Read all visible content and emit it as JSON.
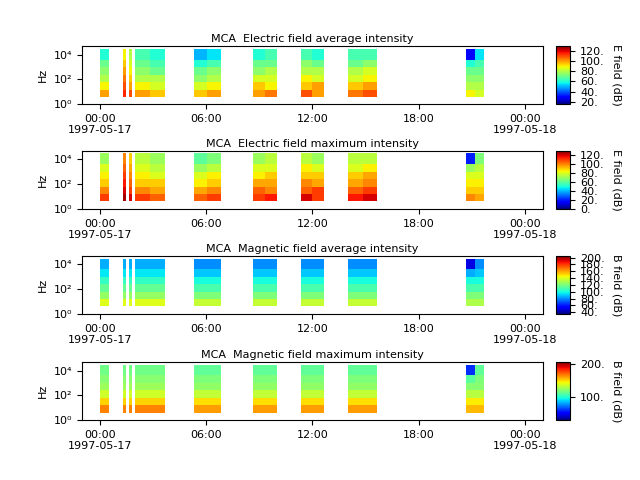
{
  "chart_data": [
    {
      "type": "heatmap",
      "title": "MCA  Electric field average intensity",
      "y_label": "Hz",
      "log": "y",
      "xlim": [
        "1997-05-16 23:00",
        "1997-05-18 01:00"
      ],
      "xticks": [
        {
          "value": "1997-05-17 00:00",
          "label": "00:00\n1997-05-17"
        },
        {
          "value": "1997-05-17 06:00",
          "label": "06:00"
        },
        {
          "value": "1997-05-17 12:00",
          "label": "12:00"
        },
        {
          "value": "1997-05-17 18:00",
          "label": "18:00"
        },
        {
          "value": "1997-05-18 00:00",
          "label": "00:00\n1997-05-18"
        }
      ],
      "ylim": [
        1,
        50000
      ],
      "yticks": [
        {
          "value": 1,
          "label": "10⁰"
        },
        {
          "value": 100,
          "label": "10²"
        },
        {
          "value": 10000,
          "label": "10⁴"
        }
      ],
      "time_edges": [
        "1997-05-17 00:00",
        "1997-05-17 00:30",
        "1997-05-17 01:20",
        "1997-05-17 01:30",
        "1997-05-17 01:40",
        "1997-05-17 01:50",
        "1997-05-17 02:00",
        "1997-05-17 02:50",
        "1997-05-17 03:40",
        "1997-05-17 05:20",
        "1997-05-17 06:05",
        "1997-05-17 06:50",
        "1997-05-17 08:40",
        "1997-05-17 09:20",
        "1997-05-17 10:00",
        "1997-05-17 11:20",
        "1997-05-17 12:00",
        "1997-05-17 12:40",
        "1997-05-17 14:00",
        "1997-05-17 14:50",
        "1997-05-17 15:40",
        "1997-05-17 20:40",
        "1997-05-17 21:10",
        "1997-05-17 21:40"
      ],
      "freq_edges": [
        4,
        15,
        60,
        250,
        1000,
        4000,
        30000
      ],
      "cells": [
        [
          100,
          null,
          115,
          null,
          110,
          null,
          100,
          95,
          null,
          95,
          100,
          null,
          100,
          105,
          null,
          110,
          100,
          null,
          105,
          110,
          null,
          90,
          85
        ],
        [
          90,
          null,
          110,
          null,
          100,
          null,
          90,
          85,
          null,
          85,
          90,
          null,
          95,
          90,
          null,
          95,
          100,
          null,
          95,
          100,
          null,
          80,
          80
        ],
        [
          80,
          null,
          105,
          null,
          95,
          null,
          80,
          80,
          null,
          75,
          80,
          null,
          85,
          85,
          null,
          90,
          85,
          null,
          85,
          90,
          null,
          75,
          75
        ],
        [
          75,
          null,
          100,
          null,
          90,
          null,
          75,
          70,
          null,
          70,
          75,
          null,
          75,
          80,
          null,
          80,
          80,
          null,
          80,
          85,
          null,
          70,
          70
        ],
        [
          70,
          null,
          95,
          null,
          85,
          null,
          70,
          65,
          null,
          60,
          65,
          null,
          70,
          70,
          null,
          75,
          70,
          null,
          70,
          75,
          null,
          60,
          65
        ],
        [
          60,
          null,
          90,
          null,
          80,
          null,
          65,
          60,
          null,
          50,
          55,
          null,
          60,
          65,
          null,
          65,
          60,
          null,
          65,
          65,
          null,
          30,
          55
        ]
      ],
      "colorbar": {
        "label": "E field (dB)",
        "range": [
          15,
          130
        ],
        "ticks": [
          {
            "value": 20,
            "label": "20."
          },
          {
            "value": 40,
            "label": "40."
          },
          {
            "value": 60,
            "label": "60."
          },
          {
            "value": 80,
            "label": "80."
          },
          {
            "value": 100,
            "label": "100."
          },
          {
            "value": 120,
            "label": "120."
          }
        ]
      }
    },
    {
      "type": "heatmap",
      "title": "MCA  Electric field maximum intensity",
      "y_label": "Hz",
      "log": "y",
      "xlim": [
        "1997-05-16 23:00",
        "1997-05-18 01:00"
      ],
      "xticks": [
        {
          "value": "1997-05-17 00:00",
          "label": "00:00\n1997-05-17"
        },
        {
          "value": "1997-05-17 06:00",
          "label": "06:00"
        },
        {
          "value": "1997-05-17 12:00",
          "label": "12:00"
        },
        {
          "value": "1997-05-17 18:00",
          "label": "18:00"
        },
        {
          "value": "1997-05-18 00:00",
          "label": "00:00\n1997-05-18"
        }
      ],
      "ylim": [
        1,
        50000
      ],
      "yticks": [
        {
          "value": 1,
          "label": "10⁰"
        },
        {
          "value": 100,
          "label": "10²"
        },
        {
          "value": 10000,
          "label": "10⁴"
        }
      ],
      "time_edges": [
        "1997-05-17 00:00",
        "1997-05-17 00:30",
        "1997-05-17 01:20",
        "1997-05-17 01:30",
        "1997-05-17 01:40",
        "1997-05-17 01:50",
        "1997-05-17 02:00",
        "1997-05-17 02:50",
        "1997-05-17 03:40",
        "1997-05-17 05:20",
        "1997-05-17 06:05",
        "1997-05-17 06:50",
        "1997-05-17 08:40",
        "1997-05-17 09:20",
        "1997-05-17 10:00",
        "1997-05-17 11:20",
        "1997-05-17 12:00",
        "1997-05-17 12:40",
        "1997-05-17 14:00",
        "1997-05-17 14:50",
        "1997-05-17 15:40",
        "1997-05-17 20:40",
        "1997-05-17 21:10",
        "1997-05-17 21:40"
      ],
      "freq_edges": [
        4,
        15,
        60,
        250,
        1000,
        4000,
        30000
      ],
      "cells": [
        [
          110,
          null,
          125,
          null,
          120,
          null,
          110,
          105,
          null,
          105,
          110,
          null,
          110,
          115,
          null,
          120,
          110,
          null,
          115,
          120,
          null,
          100,
          95
        ],
        [
          100,
          null,
          120,
          null,
          110,
          null,
          100,
          95,
          null,
          95,
          100,
          null,
          105,
          100,
          null,
          105,
          110,
          null,
          105,
          110,
          null,
          90,
          90
        ],
        [
          90,
          null,
          115,
          null,
          105,
          null,
          90,
          90,
          null,
          85,
          90,
          null,
          95,
          95,
          null,
          100,
          95,
          null,
          95,
          100,
          null,
          85,
          85
        ],
        [
          85,
          null,
          110,
          null,
          100,
          null,
          85,
          80,
          null,
          80,
          85,
          null,
          85,
          90,
          null,
          90,
          90,
          null,
          90,
          95,
          null,
          80,
          80
        ],
        [
          80,
          null,
          105,
          null,
          95,
          null,
          80,
          75,
          null,
          70,
          75,
          null,
          80,
          80,
          null,
          85,
          80,
          null,
          80,
          85,
          null,
          70,
          75
        ],
        [
          70,
          null,
          100,
          null,
          90,
          null,
          75,
          70,
          null,
          60,
          65,
          null,
          70,
          75,
          null,
          75,
          70,
          null,
          75,
          75,
          null,
          20,
          65
        ]
      ],
      "colorbar": {
        "label": "E field (dB)",
        "range": [
          0,
          130
        ],
        "ticks": [
          {
            "value": 0,
            "label": "0."
          },
          {
            "value": 20,
            "label": "20."
          },
          {
            "value": 40,
            "label": "40."
          },
          {
            "value": 60,
            "label": "60."
          },
          {
            "value": 80,
            "label": "80."
          },
          {
            "value": 100,
            "label": "100."
          },
          {
            "value": 120,
            "label": "120."
          }
        ]
      }
    },
    {
      "type": "heatmap",
      "title": "MCA  Magnetic field average intensity",
      "y_label": "Hz",
      "log": "y",
      "xlim": [
        "1997-05-16 23:00",
        "1997-05-18 01:00"
      ],
      "xticks": [
        {
          "value": "1997-05-17 00:00",
          "label": "00:00\n1997-05-17"
        },
        {
          "value": "1997-05-17 06:00",
          "label": "06:00"
        },
        {
          "value": "1997-05-17 12:00",
          "label": "12:00"
        },
        {
          "value": "1997-05-17 18:00",
          "label": "18:00"
        },
        {
          "value": "1997-05-18 00:00",
          "label": "00:00\n1997-05-18"
        }
      ],
      "ylim": [
        1,
        50000
      ],
      "yticks": [
        {
          "value": 1,
          "label": "10⁰"
        },
        {
          "value": 100,
          "label": "10²"
        },
        {
          "value": 10000,
          "label": "10⁴"
        }
      ],
      "time_edges": [
        "1997-05-17 00:00",
        "1997-05-17 00:30",
        "1997-05-17 01:20",
        "1997-05-17 01:30",
        "1997-05-17 01:40",
        "1997-05-17 01:50",
        "1997-05-17 02:00",
        "1997-05-17 02:50",
        "1997-05-17 03:40",
        "1997-05-17 05:20",
        "1997-05-17 06:05",
        "1997-05-17 06:50",
        "1997-05-17 08:40",
        "1997-05-17 09:20",
        "1997-05-17 10:00",
        "1997-05-17 11:20",
        "1997-05-17 12:00",
        "1997-05-17 12:40",
        "1997-05-17 14:00",
        "1997-05-17 14:50",
        "1997-05-17 15:40",
        "1997-05-17 20:40",
        "1997-05-17 21:10",
        "1997-05-17 21:40"
      ],
      "freq_edges": [
        4,
        15,
        60,
        250,
        1000,
        4000,
        30000
      ],
      "cells": [
        [
          140,
          null,
          140,
          null,
          140,
          null,
          140,
          140,
          null,
          135,
          135,
          null,
          135,
          135,
          null,
          135,
          135,
          null,
          135,
          135,
          null,
          130,
          130
        ],
        [
          125,
          null,
          125,
          null,
          125,
          null,
          125,
          125,
          null,
          120,
          120,
          null,
          120,
          120,
          null,
          120,
          120,
          null,
          120,
          120,
          null,
          120,
          120
        ],
        [
          115,
          null,
          115,
          null,
          115,
          null,
          115,
          115,
          null,
          110,
          110,
          null,
          110,
          110,
          null,
          110,
          110,
          null,
          110,
          110,
          null,
          110,
          110
        ],
        [
          105,
          null,
          105,
          null,
          105,
          null,
          105,
          105,
          null,
          100,
          100,
          null,
          100,
          100,
          null,
          100,
          100,
          null,
          100,
          100,
          null,
          100,
          100
        ],
        [
          95,
          null,
          95,
          null,
          95,
          null,
          95,
          95,
          null,
          90,
          90,
          null,
          90,
          90,
          null,
          90,
          90,
          null,
          90,
          90,
          null,
          85,
          90
        ],
        [
          85,
          null,
          85,
          null,
          85,
          null,
          85,
          85,
          null,
          80,
          80,
          null,
          80,
          80,
          null,
          80,
          80,
          null,
          80,
          80,
          null,
          50,
          80
        ]
      ],
      "colorbar": {
        "label": "B field (dB)",
        "range": [
          35,
          205
        ],
        "ticks": [
          {
            "value": 40,
            "label": "40."
          },
          {
            "value": 60,
            "label": "60."
          },
          {
            "value": 80,
            "label": "80."
          },
          {
            "value": 100,
            "label": "100."
          },
          {
            "value": 120,
            "label": "120."
          },
          {
            "value": 140,
            "label": "140."
          },
          {
            "value": 160,
            "label": "160."
          },
          {
            "value": 180,
            "label": "180."
          },
          {
            "value": 200,
            "label": "200."
          }
        ]
      }
    },
    {
      "type": "heatmap",
      "title": "MCA  Magnetic field maximum intensity",
      "y_label": "Hz",
      "log": "y",
      "xlim": [
        "1997-05-16 23:00",
        "1997-05-18 01:00"
      ],
      "xticks": [
        {
          "value": "1997-05-17 00:00",
          "label": "00:00\n1997-05-17"
        },
        {
          "value": "1997-05-17 06:00",
          "label": "06:00"
        },
        {
          "value": "1997-05-17 12:00",
          "label": "12:00"
        },
        {
          "value": "1997-05-17 18:00",
          "label": "18:00"
        },
        {
          "value": "1997-05-18 00:00",
          "label": "00:00\n1997-05-18"
        }
      ],
      "ylim": [
        1,
        50000
      ],
      "yticks": [
        {
          "value": 1,
          "label": "10⁰"
        },
        {
          "value": 100,
          "label": "10²"
        },
        {
          "value": 10000,
          "label": "10⁴"
        }
      ],
      "time_edges": [
        "1997-05-17 00:00",
        "1997-05-17 00:30",
        "1997-05-17 01:20",
        "1997-05-17 01:30",
        "1997-05-17 01:40",
        "1997-05-17 01:50",
        "1997-05-17 02:00",
        "1997-05-17 02:50",
        "1997-05-17 03:40",
        "1997-05-17 05:20",
        "1997-05-17 06:05",
        "1997-05-17 06:50",
        "1997-05-17 08:40",
        "1997-05-17 09:20",
        "1997-05-17 10:00",
        "1997-05-17 11:20",
        "1997-05-17 12:00",
        "1997-05-17 12:40",
        "1997-05-17 14:00",
        "1997-05-17 14:50",
        "1997-05-17 15:40",
        "1997-05-17 20:40",
        "1997-05-17 21:10",
        "1997-05-17 21:40"
      ],
      "freq_edges": [
        4,
        15,
        60,
        250,
        1000,
        4000,
        30000
      ],
      "cells": [
        [
          165,
          null,
          165,
          null,
          165,
          null,
          165,
          165,
          null,
          160,
          160,
          null,
          160,
          160,
          null,
          160,
          160,
          null,
          160,
          160,
          null,
          155,
          155
        ],
        [
          150,
          null,
          150,
          null,
          150,
          null,
          150,
          150,
          null,
          148,
          148,
          null,
          148,
          148,
          null,
          148,
          148,
          null,
          148,
          148,
          null,
          145,
          145
        ],
        [
          135,
          null,
          135,
          null,
          135,
          null,
          135,
          135,
          null,
          132,
          132,
          null,
          132,
          132,
          null,
          132,
          132,
          null,
          132,
          132,
          null,
          130,
          130
        ],
        [
          125,
          null,
          125,
          null,
          125,
          null,
          125,
          125,
          null,
          122,
          122,
          null,
          122,
          122,
          null,
          122,
          122,
          null,
          122,
          122,
          null,
          120,
          120
        ],
        [
          120,
          null,
          120,
          null,
          120,
          null,
          120,
          120,
          null,
          118,
          118,
          null,
          118,
          118,
          null,
          118,
          118,
          null,
          118,
          118,
          null,
          110,
          118
        ],
        [
          115,
          null,
          115,
          null,
          115,
          null,
          115,
          115,
          null,
          112,
          112,
          null,
          112,
          112,
          null,
          112,
          112,
          null,
          112,
          112,
          null,
          60,
          112
        ]
      ],
      "colorbar": {
        "label": "B field (dB)",
        "range": [
          30,
          205
        ],
        "ticks": [
          {
            "value": 100,
            "label": "100."
          },
          {
            "value": 200,
            "label": "200."
          }
        ]
      }
    }
  ]
}
